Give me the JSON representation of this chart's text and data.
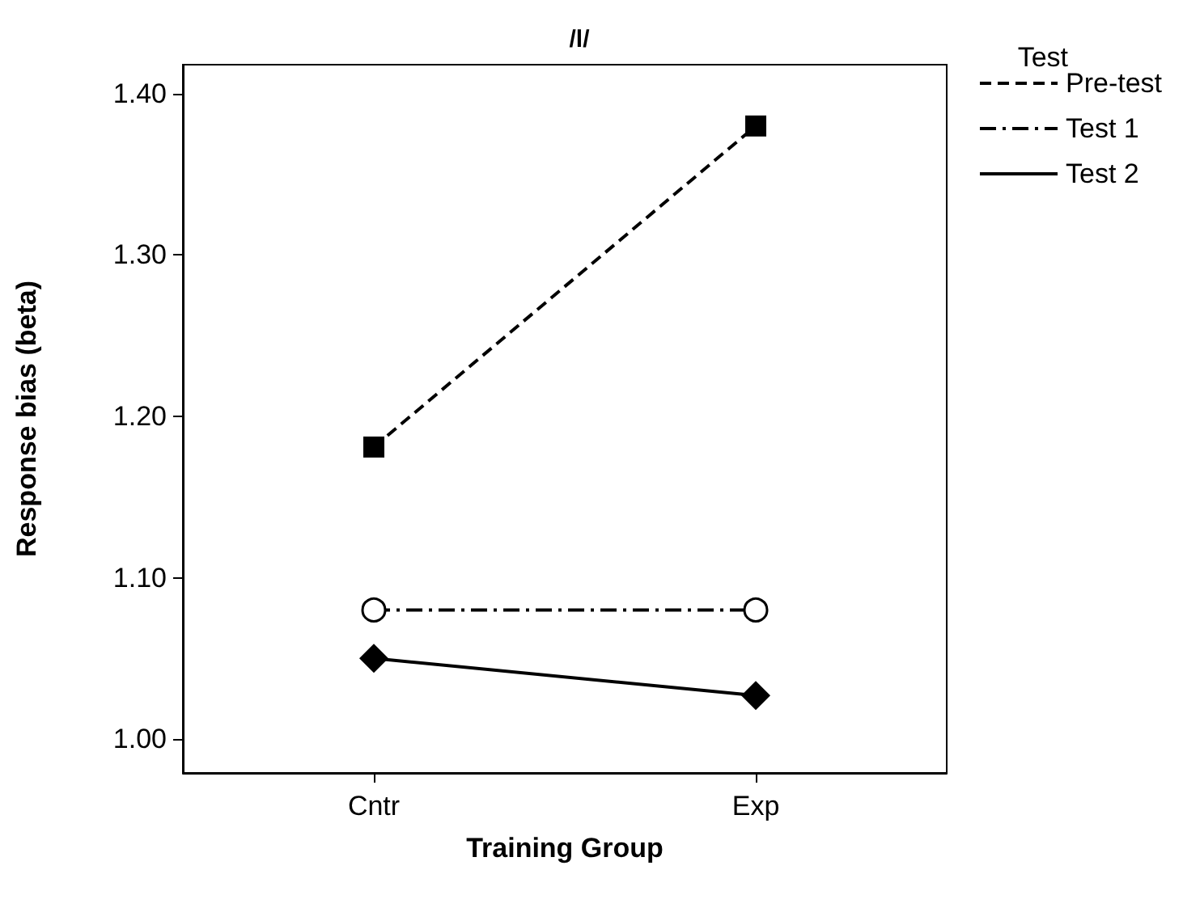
{
  "chart_data": {
    "type": "line",
    "title": "/l/",
    "xlabel": "Training Group",
    "ylabel": "Response bias (beta)",
    "legend_title": "Test",
    "categories": [
      "Cntr",
      "Exp"
    ],
    "series": [
      {
        "name": "Pre-test",
        "color": "#000000",
        "values": [
          1.181,
          1.38
        ],
        "marker": "square",
        "line_style": "dashed"
      },
      {
        "name": "Test 1",
        "color": "#000000",
        "values": [
          1.08,
          1.08
        ],
        "marker": "circle",
        "line_style": "dashdot"
      },
      {
        "name": "Test 2",
        "color": "#000000",
        "values": [
          1.05,
          1.027
        ],
        "marker": "diamond",
        "line_style": "solid"
      }
    ],
    "ylim": [
      0.979,
      1.418
    ],
    "yticks": [
      {
        "value": 1,
        "label": "1.00"
      },
      {
        "value": 1.1,
        "label": "1.10"
      },
      {
        "value": 1.2,
        "label": "1.20"
      },
      {
        "value": 1.3,
        "label": "1.30"
      },
      {
        "value": 1.4,
        "label": "1.40"
      }
    ],
    "grid": false,
    "legend": "top right"
  }
}
